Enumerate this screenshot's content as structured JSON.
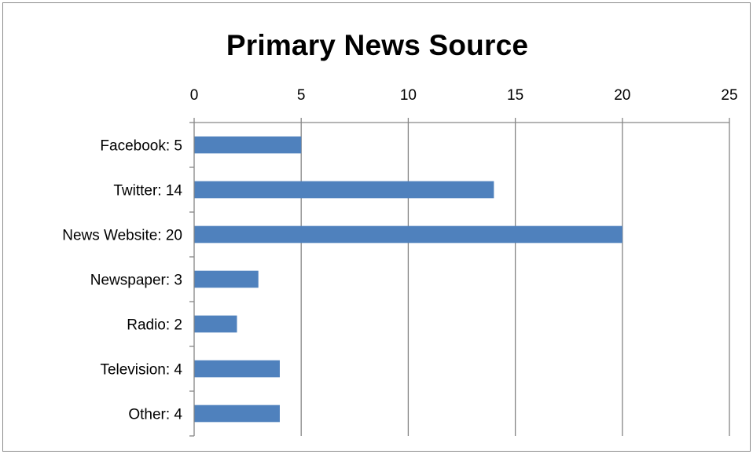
{
  "chart_data": {
    "type": "bar",
    "orientation": "horizontal",
    "title": "Primary News Source",
    "categories": [
      "Facebook: 5",
      "Twitter: 14",
      "News Website: 20",
      "Newspaper: 3",
      "Radio: 2",
      "Television: 4",
      "Other: 4"
    ],
    "values": [
      5,
      14,
      20,
      3,
      2,
      4,
      4
    ],
    "xlim": [
      0,
      25
    ],
    "x_ticks": [
      "0",
      "5",
      "10",
      "15",
      "20",
      "25"
    ],
    "x_tick_values": [
      0,
      5,
      10,
      15,
      20,
      25
    ],
    "x_axis_position": "top",
    "grid": true,
    "legend": "none",
    "bar_color": "#4f81bd",
    "grid_color": "#868686"
  }
}
